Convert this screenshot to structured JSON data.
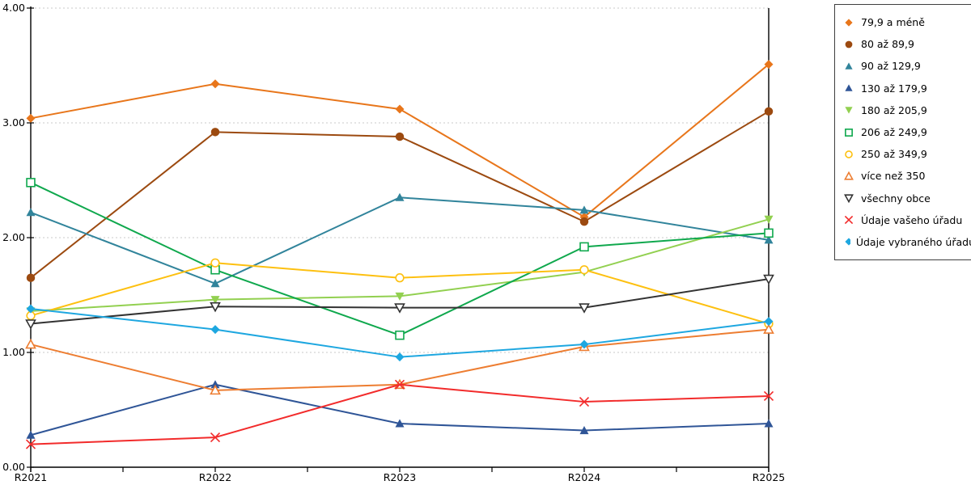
{
  "chart_data": {
    "type": "line",
    "categories": [
      "R2021",
      "R2022",
      "R2023",
      "R2024",
      "R2025"
    ],
    "yticks": [
      "0.00",
      "1.00",
      "2.00",
      "3.00",
      "4.00"
    ],
    "ylim": [
      0,
      4
    ],
    "grid": "horizontal-dashed",
    "legend_position": "right",
    "colors": {
      "background": "#FFFFFF",
      "axis": "#000000",
      "gridline": "#C9C9C9",
      "legend_border": "#3F3F3F"
    },
    "series": [
      {
        "name": "79,9 a méně",
        "marker": "diamond-filled",
        "color": "#E8761B",
        "values": [
          3.04,
          3.34,
          3.12,
          2.18,
          3.51
        ]
      },
      {
        "name": "80 až 89,9",
        "marker": "circle-filled",
        "color": "#9C4A10",
        "values": [
          1.65,
          2.92,
          2.88,
          2.14,
          3.1
        ]
      },
      {
        "name": "90 až 129,9",
        "marker": "triangle-up-filled",
        "color": "#31849B",
        "values": [
          2.22,
          1.6,
          2.35,
          2.24,
          1.98
        ]
      },
      {
        "name": "130 až 179,9",
        "marker": "triangle-up-filled",
        "color": "#2F5597",
        "values": [
          0.28,
          0.72,
          0.38,
          0.32,
          0.38
        ]
      },
      {
        "name": "180 až 205,9",
        "marker": "triangle-down-filled",
        "color": "#92D050",
        "values": [
          1.36,
          1.46,
          1.49,
          1.7,
          2.16
        ]
      },
      {
        "name": "206 až 249,9",
        "marker": "square-open",
        "color": "#0FA84D",
        "values": [
          2.48,
          1.72,
          1.15,
          1.92,
          2.04
        ]
      },
      {
        "name": "250 až 349,9",
        "marker": "circle-open",
        "color": "#FDC010",
        "values": [
          1.32,
          1.78,
          1.65,
          1.72,
          1.25
        ]
      },
      {
        "name": "více než 350",
        "marker": "triangle-up-open",
        "color": "#ED7D31",
        "values": [
          1.07,
          0.67,
          0.72,
          1.05,
          1.2
        ]
      },
      {
        "name": "všechny obce",
        "marker": "triangle-down-open",
        "color": "#333333",
        "values": [
          1.25,
          1.4,
          1.39,
          1.39,
          1.64
        ]
      },
      {
        "name": "Údaje vašeho úřadu",
        "marker": "x",
        "color": "#F22B2B",
        "values": [
          0.2,
          0.26,
          0.72,
          0.57,
          0.62
        ]
      },
      {
        "name": "Údaje vybraného úřadu",
        "marker": "diamond-filled",
        "color": "#1EA7E0",
        "values": [
          1.38,
          1.2,
          0.96,
          1.07,
          1.27
        ]
      }
    ]
  }
}
